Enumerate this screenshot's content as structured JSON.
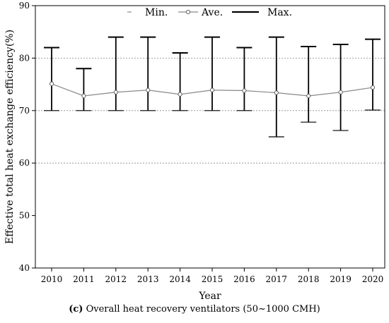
{
  "chart_data": {
    "type": "line",
    "x": [
      "2010",
      "2011",
      "2012",
      "2013",
      "2014",
      "2015",
      "2016",
      "2017",
      "2018",
      "2019",
      "2020"
    ],
    "series": [
      {
        "name": "Min.",
        "values": [
          70,
          70,
          70,
          70,
          70,
          70,
          70,
          65,
          67.8,
          66.2,
          70.1
        ]
      },
      {
        "name": "Ave.",
        "values": [
          75.1,
          72.8,
          73.5,
          73.9,
          73.1,
          73.9,
          73.8,
          73.4,
          72.8,
          73.5,
          74.4
        ]
      },
      {
        "name": "Max.",
        "values": [
          82,
          78,
          84,
          84,
          81,
          84,
          82,
          84,
          82.2,
          82.6,
          83.6
        ]
      }
    ],
    "xlabel": "Year",
    "ylabel": "Effective total heat exchange efficiency(%)",
    "ylim": [
      40,
      90
    ],
    "yticks": [
      40,
      50,
      60,
      70,
      80,
      90
    ],
    "grid": "horizontal dashed at 60, 70, 80",
    "legend_position": "top-center"
  },
  "caption": {
    "label": "(c)",
    "text": " Overall heat recovery ventilators (50~1000 CMH)"
  }
}
